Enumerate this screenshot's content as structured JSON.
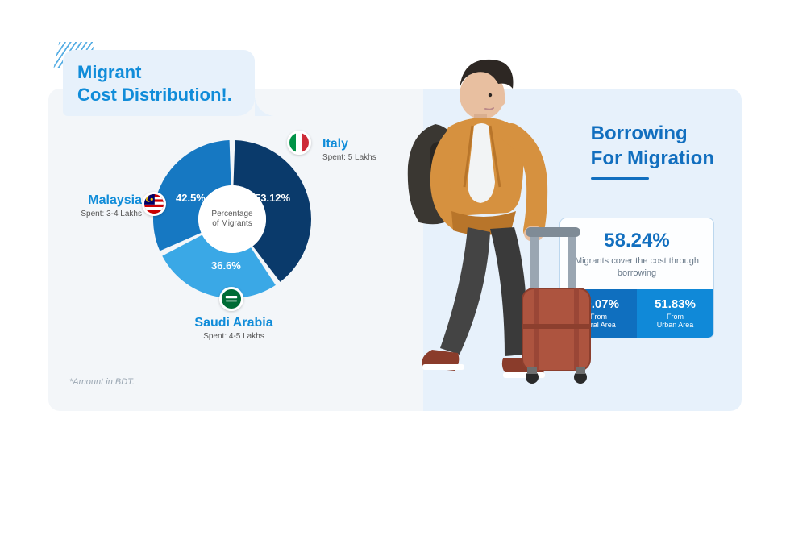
{
  "layout": {
    "canvas_bg_left": "#f3f6f9",
    "canvas_bg_right": "#e7f1fb",
    "accent_blue": "#108cd9",
    "title_blue": "#126fbf"
  },
  "title": {
    "text": "Migrant\nCost Distribution!."
  },
  "footnote": "*Amount in BDT.",
  "donut": {
    "type": "donut",
    "center_label": "Percentage\nof Migrants",
    "slices": [
      {
        "country": "Italy",
        "spent": "Spent: 5 Lakhs",
        "percent_label": "53.12%",
        "value": 53.12,
        "color": "#0a3a6b",
        "flag": "italy"
      },
      {
        "country": "Saudi Arabia",
        "spent": "Spent: 4-5 Lakhs",
        "percent_label": "36.6%",
        "value": 36.6,
        "color": "#3aa8e6",
        "flag": "saudi"
      },
      {
        "country": "Malaysia",
        "spent": "Spent: 3-4 Lakhs",
        "percent_label": "42.5%",
        "value": 42.5,
        "color": "#1678c2",
        "flag": "malaysia"
      }
    ],
    "inner_radius": 42,
    "outer_radius": 98,
    "gap_deg": 4,
    "background": "transparent"
  },
  "borrowing": {
    "title_line1": "Borrowing",
    "title_line2": "For Migration",
    "main_percent": "58.24%",
    "main_desc": "Migrants cover the cost through borrowing",
    "rural": {
      "percent": "60.07%",
      "label": "From\nRural Area"
    },
    "urban": {
      "percent": "51.83%",
      "label": "From\nUrban Area"
    },
    "split_colors": [
      "#0f6fbf",
      "#1089d8"
    ]
  },
  "traveler": {
    "jacket": "#d6913f",
    "jacket_dark": "#b8752a",
    "shirt": "#f2f4f5",
    "hair": "#2d2723",
    "skin": "#e8bfa0",
    "pants": "#444444",
    "shoes": "#8a3c2b",
    "backpack": "#3a3732",
    "suitcase": "#ad543f",
    "suitcase_handle": "#9aa6b2",
    "wheel": "#2a2a2a"
  }
}
